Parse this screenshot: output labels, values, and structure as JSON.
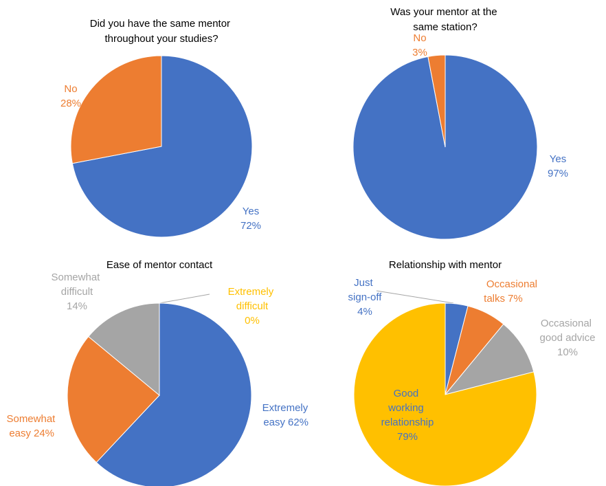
{
  "chart_data": [
    {
      "type": "pie",
      "title": "Did you have the same mentor throughout your studies?",
      "categories": [
        "Yes",
        "No"
      ],
      "values": [
        72,
        28
      ],
      "value_labels": [
        "72%",
        "28%"
      ],
      "colors": [
        "#4472c4",
        "#ed7d31"
      ]
    },
    {
      "type": "pie",
      "title": "Was your mentor at the same station?",
      "categories": [
        "Yes",
        "No"
      ],
      "values": [
        97,
        3
      ],
      "value_labels": [
        "97%",
        "3%"
      ],
      "colors": [
        "#4472c4",
        "#ed7d31"
      ]
    },
    {
      "type": "pie",
      "title": "Ease of mentor contact",
      "categories": [
        "Extremely easy",
        "Somewhat easy",
        "Somewhat difficult",
        "Extremely difficult"
      ],
      "values": [
        62,
        24,
        14,
        0
      ],
      "value_labels": [
        "62%",
        "24%",
        "14%",
        "0%"
      ],
      "colors": [
        "#4472c4",
        "#ed7d31",
        "#a5a5a5",
        "#ffc000"
      ]
    },
    {
      "type": "pie",
      "title": "Relationship with mentor",
      "categories": [
        "Just sign-off",
        "Occasional talks",
        "Occasional good advice",
        "Good working relationship"
      ],
      "values": [
        4,
        7,
        10,
        79
      ],
      "value_labels": [
        "4%",
        "7%",
        "10%",
        "79%"
      ],
      "colors": [
        "#4472c4",
        "#ed7d31",
        "#a5a5a5",
        "#ffc000"
      ]
    }
  ]
}
